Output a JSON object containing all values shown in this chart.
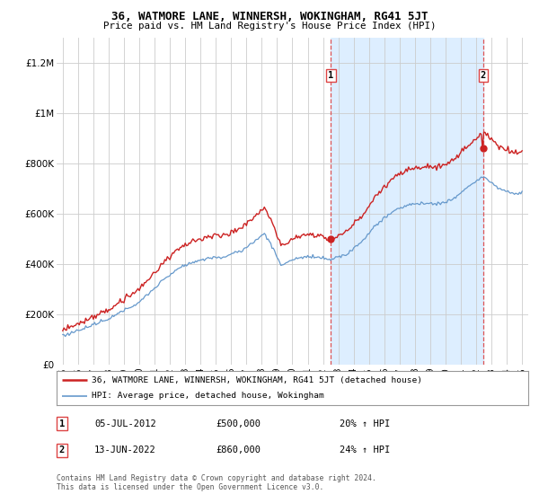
{
  "title": "36, WATMORE LANE, WINNERSH, WOKINGHAM, RG41 5JT",
  "subtitle": "Price paid vs. HM Land Registry's House Price Index (HPI)",
  "yticks": [
    0,
    200000,
    400000,
    600000,
    800000,
    1000000,
    1200000
  ],
  "ytick_labels": [
    "£0",
    "£200K",
    "£400K",
    "£600K",
    "£800K",
    "£1M",
    "£1.2M"
  ],
  "ylim": [
    0,
    1300000
  ],
  "xlim_start": 1994.6,
  "xlim_end": 2025.4,
  "sale1_date": 2012.52,
  "sale1_price": 500000,
  "sale2_date": 2022.45,
  "sale2_price": 860000,
  "legend_line1": "36, WATMORE LANE, WINNERSH, WOKINGHAM, RG41 5JT (detached house)",
  "legend_line2": "HPI: Average price, detached house, Wokingham",
  "annotation1_label": "1",
  "annotation1_date": "05-JUL-2012",
  "annotation1_price": "£500,000",
  "annotation1_pct": "20% ↑ HPI",
  "annotation2_label": "2",
  "annotation2_date": "13-JUN-2022",
  "annotation2_price": "£860,000",
  "annotation2_pct": "24% ↑ HPI",
  "footnote": "Contains HM Land Registry data © Crown copyright and database right 2024.\nThis data is licensed under the Open Government Licence v3.0.",
  "red_color": "#cc2222",
  "blue_color": "#6699cc",
  "fill_color": "#ddeeff",
  "background_color": "#ffffff",
  "grid_color": "#cccccc",
  "dashed_color": "#dd4444"
}
